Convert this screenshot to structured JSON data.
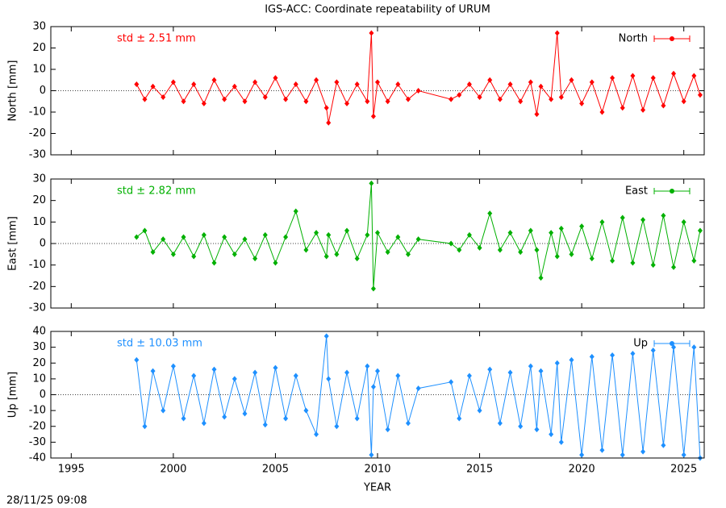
{
  "title": "IGS-ACC: Coordinate repeatability of URUM",
  "footer": "28/11/25 09:08",
  "chart_data": [
    {
      "type": "line",
      "ylabel": "North [mm]",
      "annotation": "std ± 2.51 mm",
      "legend": "upper right",
      "show_xtick_labels": false,
      "xlim": [
        1994,
        2026
      ],
      "xticks": [
        1995,
        2000,
        2005,
        2010,
        2015,
        2020,
        2025
      ],
      "ylim": [
        -30,
        30
      ],
      "yticks": [
        -30,
        -20,
        -10,
        0,
        10,
        20,
        30
      ],
      "x": [
        1998.2,
        1998.6,
        1999.0,
        1999.5,
        2000.0,
        2000.5,
        2001.0,
        2001.5,
        2002.0,
        2002.5,
        2003.0,
        2003.5,
        2004.0,
        2004.5,
        2005.0,
        2005.5,
        2006.0,
        2006.5,
        2007.0,
        2007.5,
        2007.6,
        2008.0,
        2008.5,
        2009.0,
        2009.5,
        2009.7,
        2009.8,
        2010.0,
        2010.5,
        2011.0,
        2011.5,
        2012.0,
        2013.6,
        2014.0,
        2014.5,
        2015.0,
        2015.5,
        2016.0,
        2016.5,
        2017.0,
        2017.5,
        2017.8,
        2018.0,
        2018.5,
        2018.8,
        2019.0,
        2019.5,
        2020.0,
        2020.5,
        2021.0,
        2021.5,
        2022.0,
        2022.5,
        2023.0,
        2023.5,
        2024.0,
        2024.5,
        2025.0,
        2025.5,
        2025.8
      ],
      "series": [
        {
          "name": "North",
          "color": "#ff0000",
          "values": [
            3,
            -4,
            2,
            -3,
            4,
            -5,
            3,
            -6,
            5,
            -4,
            2,
            -5,
            4,
            -3,
            6,
            -4,
            3,
            -5,
            5,
            -8,
            -15,
            4,
            -6,
            3,
            -5,
            27,
            -12,
            4,
            -5,
            3,
            -4,
            0,
            -4,
            -2,
            3,
            -3,
            5,
            -4,
            3,
            -5,
            4,
            -11,
            2,
            -4,
            27,
            -3,
            5,
            -6,
            4,
            -10,
            6,
            -8,
            7,
            -9,
            6,
            -7,
            8,
            -5,
            7,
            -2
          ]
        }
      ]
    },
    {
      "type": "line",
      "ylabel": "East [mm]",
      "annotation": "std ± 2.82 mm",
      "legend": "upper right",
      "show_xtick_labels": false,
      "xlim": [
        1994,
        2026
      ],
      "xticks": [
        1995,
        2000,
        2005,
        2010,
        2015,
        2020,
        2025
      ],
      "ylim": [
        -30,
        30
      ],
      "yticks": [
        -30,
        -20,
        -10,
        0,
        10,
        20,
        30
      ],
      "x": [
        1998.2,
        1998.6,
        1999.0,
        1999.5,
        2000.0,
        2000.5,
        2001.0,
        2001.5,
        2002.0,
        2002.5,
        2003.0,
        2003.5,
        2004.0,
        2004.5,
        2005.0,
        2005.5,
        2006.0,
        2006.5,
        2007.0,
        2007.5,
        2007.6,
        2008.0,
        2008.5,
        2009.0,
        2009.5,
        2009.7,
        2009.8,
        2010.0,
        2010.5,
        2011.0,
        2011.5,
        2012.0,
        2013.6,
        2014.0,
        2014.5,
        2015.0,
        2015.5,
        2016.0,
        2016.5,
        2017.0,
        2017.5,
        2017.8,
        2018.0,
        2018.5,
        2018.8,
        2019.0,
        2019.5,
        2020.0,
        2020.5,
        2021.0,
        2021.5,
        2022.0,
        2022.5,
        2023.0,
        2023.5,
        2024.0,
        2024.5,
        2025.0,
        2025.5,
        2025.8
      ],
      "series": [
        {
          "name": "East",
          "color": "#00b000",
          "values": [
            3,
            6,
            -4,
            2,
            -5,
            3,
            -6,
            4,
            -9,
            3,
            -5,
            2,
            -7,
            4,
            -9,
            3,
            15,
            -3,
            5,
            -6,
            4,
            -5,
            6,
            -7,
            4,
            28,
            -21,
            5,
            -4,
            3,
            -5,
            2,
            0,
            -3,
            4,
            -2,
            14,
            -3,
            5,
            -4,
            6,
            -3,
            -16,
            5,
            -6,
            7,
            -5,
            8,
            -7,
            10,
            -8,
            12,
            -9,
            11,
            -10,
            13,
            -11,
            10,
            -8,
            6
          ]
        }
      ]
    },
    {
      "type": "line",
      "ylabel": "Up [mm]",
      "xlabel": "YEAR",
      "annotation": "std ± 10.03 mm",
      "legend": "upper right",
      "show_xtick_labels": true,
      "xlim": [
        1994,
        2026
      ],
      "xticks": [
        1995,
        2000,
        2005,
        2010,
        2015,
        2020,
        2025
      ],
      "ylim": [
        -40,
        40
      ],
      "yticks": [
        -40,
        -30,
        -20,
        -10,
        0,
        10,
        20,
        30,
        40
      ],
      "x": [
        1998.2,
        1998.6,
        1999.0,
        1999.5,
        2000.0,
        2000.5,
        2001.0,
        2001.5,
        2002.0,
        2002.5,
        2003.0,
        2003.5,
        2004.0,
        2004.5,
        2005.0,
        2005.5,
        2006.0,
        2006.5,
        2007.0,
        2007.5,
        2007.6,
        2008.0,
        2008.5,
        2009.0,
        2009.5,
        2009.7,
        2009.8,
        2010.0,
        2010.5,
        2011.0,
        2011.5,
        2012.0,
        2013.6,
        2014.0,
        2014.5,
        2015.0,
        2015.5,
        2016.0,
        2016.5,
        2017.0,
        2017.5,
        2017.8,
        2018.0,
        2018.5,
        2018.8,
        2019.0,
        2019.5,
        2020.0,
        2020.5,
        2021.0,
        2021.5,
        2022.0,
        2022.5,
        2023.0,
        2023.5,
        2024.0,
        2024.5,
        2025.0,
        2025.5,
        2025.8
      ],
      "series": [
        {
          "name": "Up",
          "color": "#1e90ff",
          "values": [
            22,
            -20,
            15,
            -10,
            18,
            -15,
            12,
            -18,
            16,
            -14,
            10,
            -12,
            14,
            -19,
            17,
            -15,
            12,
            -10,
            -25,
            37,
            10,
            -20,
            14,
            -15,
            18,
            -38,
            5,
            15,
            -22,
            12,
            -18,
            4,
            8,
            -15,
            12,
            -10,
            16,
            -18,
            14,
            -20,
            18,
            -22,
            15,
            -25,
            20,
            -30,
            22,
            -38,
            24,
            -35,
            25,
            -38,
            26,
            -36,
            28,
            -32,
            30,
            -38,
            30,
            -40
          ]
        }
      ]
    }
  ]
}
